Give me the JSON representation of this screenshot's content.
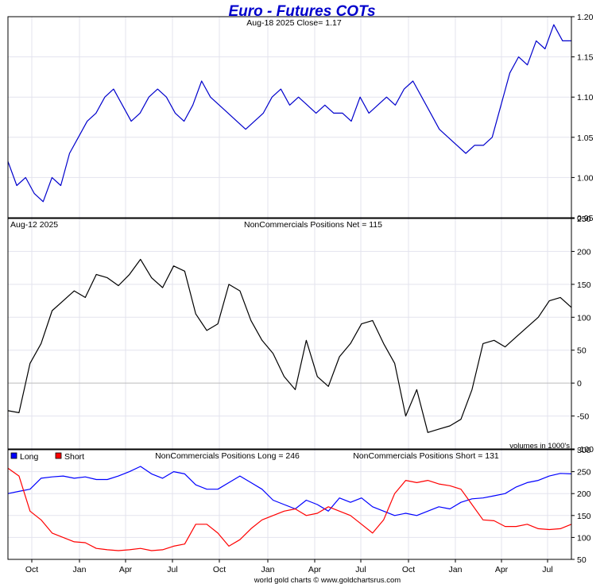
{
  "title": "Euro - Futures COTs",
  "footer": "world gold charts © www.goldchartsrus.com",
  "colors": {
    "title": "#0000cc",
    "price": "#0000cc",
    "net": "#000000",
    "long": "#0000ff",
    "short": "#ff0000",
    "grid": "#e3e3ee",
    "zero": "#bbbbbb"
  },
  "x_axis": {
    "labels": [
      "Oct",
      "Jan",
      "Apr",
      "Jul",
      "Oct",
      "Jan",
      "Apr",
      "Jul",
      "Oct",
      "Jan",
      "Apr",
      "Jul"
    ]
  },
  "chart_data": [
    {
      "type": "line",
      "panel": "price",
      "header": "Aug-18  2025   Close= 1.17",
      "ylim": [
        0.95,
        1.2
      ],
      "yticks": [
        "1.20",
        "1.15",
        "1.10",
        "1.05",
        "1.00",
        "0.95"
      ],
      "ytick_values": [
        1.2,
        1.15,
        1.1,
        1.05,
        1.0,
        0.95
      ],
      "grid": true,
      "series": [
        {
          "values": [
            1.02,
            0.99,
            1.0,
            0.98,
            0.97,
            1.0,
            0.99,
            1.03,
            1.05,
            1.07,
            1.08,
            1.1,
            1.11,
            1.09,
            1.07,
            1.08,
            1.1,
            1.11,
            1.1,
            1.08,
            1.07,
            1.09,
            1.12,
            1.1,
            1.09,
            1.08,
            1.07,
            1.06,
            1.07,
            1.08,
            1.1,
            1.11,
            1.09,
            1.1,
            1.09,
            1.08,
            1.09,
            1.08,
            1.08,
            1.07,
            1.1,
            1.08,
            1.09,
            1.1,
            1.09,
            1.11,
            1.12,
            1.1,
            1.08,
            1.06,
            1.05,
            1.04,
            1.03,
            1.04,
            1.04,
            1.05,
            1.09,
            1.13,
            1.15,
            1.14,
            1.17,
            1.16,
            1.19,
            1.17,
            1.17
          ]
        }
      ]
    },
    {
      "type": "line",
      "panel": "net",
      "header_left": "Aug-12  2025",
      "header": "NonCommercials Positions Net = 115",
      "note": "volumes in 1000's",
      "ylim": [
        -100,
        250
      ],
      "yticks": [
        "250",
        "200",
        "150",
        "100",
        "50",
        "0",
        "-50",
        "-100"
      ],
      "ytick_values": [
        250,
        200,
        150,
        100,
        50,
        0,
        -50,
        -100
      ],
      "grid": true,
      "series": [
        {
          "values": [
            -42,
            -45,
            30,
            60,
            110,
            125,
            140,
            130,
            165,
            160,
            148,
            165,
            188,
            160,
            145,
            178,
            170,
            105,
            80,
            90,
            150,
            140,
            95,
            65,
            45,
            10,
            -10,
            65,
            10,
            -5,
            40,
            60,
            90,
            95,
            60,
            30,
            -50,
            -10,
            -75,
            -70,
            -65,
            -55,
            -10,
            60,
            65,
            55,
            70,
            85,
            100,
            125,
            130,
            115
          ]
        }
      ]
    },
    {
      "type": "line",
      "panel": "long-short",
      "header": "NonCommercials Positions Long = 246",
      "header2": "NonCommercials Positions Short = 131",
      "ylim": [
        50,
        300
      ],
      "yticks": [
        "300",
        "250",
        "200",
        "150",
        "100",
        "50"
      ],
      "ytick_values": [
        300,
        250,
        200,
        150,
        100,
        50
      ],
      "legend_position": "top-left",
      "grid": true,
      "series": [
        {
          "name": "Long",
          "values": [
            200,
            205,
            210,
            235,
            238,
            240,
            235,
            238,
            232,
            232,
            240,
            250,
            262,
            245,
            235,
            250,
            245,
            220,
            210,
            210,
            225,
            240,
            225,
            210,
            185,
            175,
            165,
            185,
            175,
            160,
            190,
            180,
            190,
            170,
            160,
            150,
            155,
            150,
            160,
            170,
            165,
            180,
            188,
            190,
            195,
            200,
            215,
            225,
            230,
            240,
            246,
            245
          ]
        },
        {
          "name": "Short",
          "values": [
            258,
            240,
            160,
            140,
            110,
            100,
            90,
            88,
            75,
            72,
            70,
            72,
            75,
            70,
            72,
            80,
            85,
            130,
            130,
            110,
            80,
            95,
            120,
            140,
            150,
            160,
            165,
            150,
            155,
            170,
            160,
            150,
            130,
            110,
            140,
            200,
            230,
            225,
            230,
            222,
            218,
            210,
            175,
            140,
            138,
            125,
            125,
            130,
            120,
            118,
            120,
            130
          ]
        }
      ]
    }
  ]
}
